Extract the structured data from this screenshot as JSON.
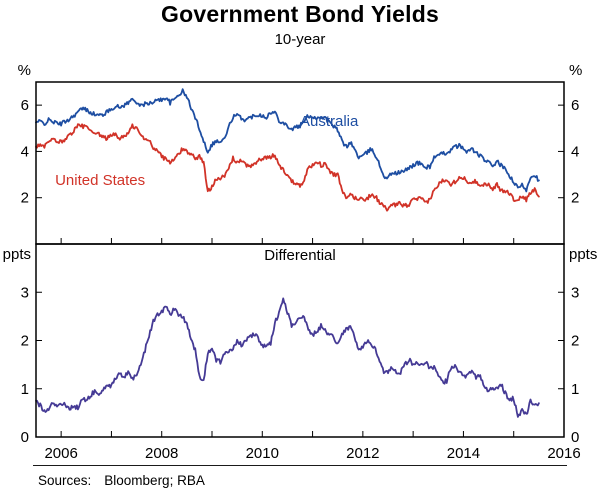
{
  "footer": {
    "label": "Sources:",
    "value": "Bloomberg; RBA"
  },
  "chart_data": {
    "type": "line",
    "title": "Government Bond Yields",
    "subtitle": "10-year",
    "x": {
      "start": 2005.5,
      "step": 0.0833333,
      "range": [
        2005.5,
        2016
      ],
      "ticks": [
        2006,
        2008,
        2010,
        2012,
        2014,
        2016
      ]
    },
    "panels": [
      {
        "unit": "%",
        "ylim": [
          0,
          7
        ],
        "yticks": [
          2,
          4,
          6
        ],
        "series": [
          {
            "name": "Australia",
            "label": "Australia",
            "color": "#1e4ea2",
            "label_at": [
              2010.75,
              5.1
            ],
            "values": [
              5.25,
              5.3,
              5.2,
              5.35,
              5.3,
              5.2,
              5.2,
              5.3,
              5.4,
              5.55,
              5.7,
              5.85,
              5.8,
              5.7,
              5.6,
              5.55,
              5.6,
              5.7,
              5.85,
              5.95,
              5.9,
              6,
              6.1,
              6.25,
              6.15,
              5.95,
              6.05,
              6.1,
              6.05,
              6.3,
              6.2,
              6.35,
              6.1,
              6.25,
              6.45,
              6.6,
              6.35,
              5.9,
              5.45,
              5,
              4.45,
              4,
              4.3,
              4.45,
              4.4,
              4.55,
              5.05,
              5.5,
              5.55,
              5.45,
              5.35,
              5.45,
              5.55,
              5.6,
              5.55,
              5.5,
              5.65,
              5.7,
              5.35,
              5.25,
              5.1,
              4.95,
              5.05,
              5.1,
              5.3,
              5.55,
              5.5,
              5.45,
              5.5,
              5.45,
              5.25,
              5.1,
              4.9,
              4.45,
              4.2,
              4.4,
              4.1,
              3.75,
              3.8,
              3.95,
              4.1,
              3.85,
              3.4,
              2.95,
              2.85,
              3.1,
              3.05,
              3.1,
              3.15,
              3.3,
              3.4,
              3.5,
              3.45,
              3.3,
              3.35,
              3.75,
              3.8,
              3.9,
              3.95,
              4.05,
              4.2,
              4.25,
              4.1,
              4,
              4.1,
              3.95,
              3.8,
              3.65,
              3.5,
              3.4,
              3.55,
              3.4,
              3.2,
              2.95,
              2.65,
              2.4,
              2.55,
              2.35,
              2.9,
              3,
              2.75
            ]
          },
          {
            "name": "United States",
            "label": "United States",
            "color": "#d13328",
            "label_at": [
              2005.88,
              2.55
            ],
            "values": [
              4.2,
              4.25,
              4.2,
              4.4,
              4.5,
              4.45,
              4.4,
              4.55,
              4.7,
              4.9,
              5.1,
              5.1,
              5.05,
              4.9,
              4.7,
              4.75,
              4.6,
              4.55,
              4.75,
              4.7,
              4.55,
              4.7,
              4.75,
              5.1,
              5,
              4.7,
              4.5,
              4.5,
              4.15,
              4.1,
              3.75,
              3.7,
              3.5,
              3.65,
              3.9,
              4.1,
              4,
              3.9,
              3.7,
              3.8,
              3.5,
              2.25,
              2.5,
              2.85,
              2.85,
              2.9,
              3.3,
              3.7,
              3.55,
              3.6,
              3.4,
              3.4,
              3.4,
              3.6,
              3.7,
              3.7,
              3.75,
              3.85,
              3.4,
              3.2,
              3,
              2.7,
              2.65,
              2.55,
              2.75,
              3.3,
              3.4,
              3.6,
              3.4,
              3.45,
              3.15,
              3,
              3,
              2.3,
              1.95,
              2.15,
              2,
              1.95,
              1.95,
              1.95,
              2.15,
              2.05,
              1.8,
              1.6,
              1.5,
              1.65,
              1.7,
              1.75,
              1.65,
              1.7,
              1.9,
              1.95,
              1.95,
              1.75,
              1.95,
              2.3,
              2.55,
              2.75,
              2.8,
              2.6,
              2.7,
              2.9,
              2.85,
              2.7,
              2.7,
              2.7,
              2.55,
              2.6,
              2.55,
              2.4,
              2.55,
              2.3,
              2.3,
              2.2,
              1.9,
              1.95,
              2.05,
              1.9,
              2.2,
              2.35,
              2.05
            ]
          }
        ]
      },
      {
        "unit": "ppts",
        "panel_label": "Differential",
        "ylim": [
          0,
          4
        ],
        "yticks": [
          0,
          1,
          2,
          3
        ],
        "series": [
          {
            "name": "Differential",
            "color": "#453a95",
            "values": [
              0.75,
              0.65,
              0.55,
              0.6,
              0.7,
              0.65,
              0.7,
              0.65,
              0.6,
              0.65,
              0.6,
              0.75,
              0.8,
              0.85,
              0.95,
              0.85,
              1,
              1.1,
              1.05,
              1.2,
              1.3,
              1.25,
              1.35,
              1.2,
              1.3,
              1.5,
              1.8,
              2.1,
              2.4,
              2.55,
              2.6,
              2.7,
              2.55,
              2.65,
              2.55,
              2.5,
              2.35,
              2.05,
              1.8,
              1.25,
              1.15,
              1.75,
              1.85,
              1.6,
              1.55,
              1.7,
              1.8,
              1.85,
              2,
              1.9,
              2,
              2.05,
              2.15,
              2.05,
              1.9,
              1.85,
              1.95,
              2.35,
              2.6,
              2.85,
              2.6,
              2.3,
              2.4,
              2.5,
              2.45,
              2.25,
              2.1,
              2.2,
              2.3,
              2.25,
              2.1,
              2.1,
              1.9,
              2.15,
              2.25,
              2.25,
              2.1,
              1.8,
              1.85,
              2,
              1.95,
              1.8,
              1.6,
              1.35,
              1.35,
              1.45,
              1.35,
              1.35,
              1.5,
              1.6,
              1.5,
              1.55,
              1.5,
              1.55,
              1.4,
              1.45,
              1.25,
              1.15,
              1.15,
              1.45,
              1.5,
              1.35,
              1.25,
              1.3,
              1.4,
              1.25,
              1.25,
              1.05,
              0.95,
              1,
              1,
              1.1,
              0.9,
              0.75,
              0.8,
              0.45,
              0.55,
              0.45,
              0.75,
              0.65,
              0.7
            ]
          }
        ]
      }
    ]
  }
}
